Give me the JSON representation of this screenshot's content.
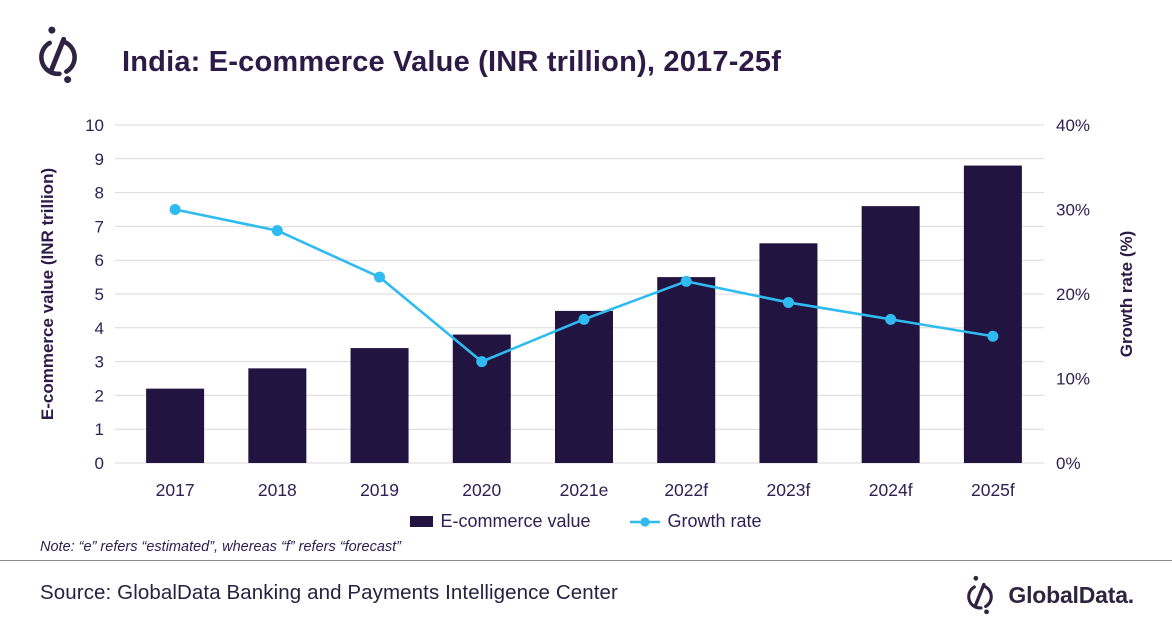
{
  "header": {
    "title": "India: E-commerce Value (INR trillion), 2017-25f",
    "logo": "globaldata-mark-icon"
  },
  "chart_data": {
    "type": "combo",
    "title": "India: E-commerce Value (INR trillion), 2017-25f",
    "categories": [
      "2017",
      "2018",
      "2019",
      "2020",
      "2021e",
      "2022f",
      "2023f",
      "2024f",
      "2025f"
    ],
    "series": [
      {
        "name": "E-commerce value",
        "type": "bar",
        "axis": "left",
        "color": "#221441",
        "values": [
          2.2,
          2.8,
          3.4,
          3.8,
          4.5,
          5.5,
          6.5,
          7.6,
          8.8
        ]
      },
      {
        "name": "Growth rate",
        "type": "line",
        "axis": "right",
        "color": "#2fbbf0",
        "values": [
          30,
          27.5,
          22,
          12,
          17,
          21.5,
          19,
          17,
          15
        ]
      }
    ],
    "ylabel_left": "E-commerce value (INR trillion)",
    "ylabel_right": "Growth rate (%)",
    "left_axis": {
      "min": 0,
      "max": 10,
      "step": 1
    },
    "right_axis": {
      "min": 0,
      "max": 40,
      "step": 10,
      "suffix": "%"
    },
    "grid": true,
    "legend_position": "bottom",
    "colors": {
      "grid": "#d9d9d9",
      "tick_text": "#2d2154"
    }
  },
  "note": {
    "text": "Note: “e” refers “estimated”, whereas “f” refers “forecast”"
  },
  "footer": {
    "source": "Source: GlobalData Banking and Payments Intelligence Center",
    "brand": "GlobalData."
  },
  "theme": {
    "title": "#2e1a47",
    "text": "#2d2154",
    "note": "#2d2154",
    "footer_text": "#262140",
    "divider": "#8c8c8c",
    "brand": "#2e2640"
  }
}
